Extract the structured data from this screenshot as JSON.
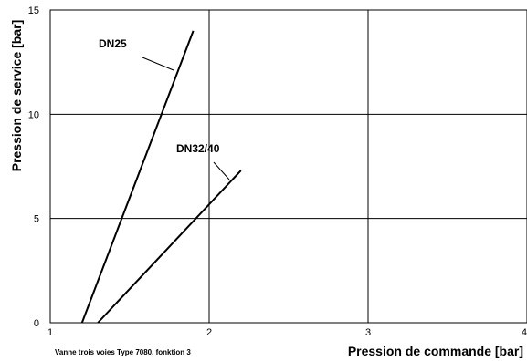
{
  "chart_data": {
    "type": "line",
    "xlabel": "Pression de commande [bar]",
    "ylabel": "Pression de service [bar]",
    "xlim": [
      1,
      4
    ],
    "ylim": [
      0,
      15
    ],
    "x_ticks": [
      1,
      2,
      3,
      4
    ],
    "y_ticks": [
      0,
      5,
      10,
      15
    ],
    "x_tick_labels": [
      "1",
      "2",
      "3",
      "4"
    ],
    "y_tick_labels": [
      "0",
      "5",
      "10",
      "15"
    ],
    "grid": true,
    "series": [
      {
        "name": "DN25",
        "x": [
          1.2,
          1.9
        ],
        "y": [
          0,
          14
        ]
      },
      {
        "name": "DN32/40",
        "x": [
          1.3,
          2.2
        ],
        "y": [
          0,
          7.3
        ]
      }
    ],
    "footnote": "Vanne trois voies Type 7080,  fonktion 3"
  }
}
